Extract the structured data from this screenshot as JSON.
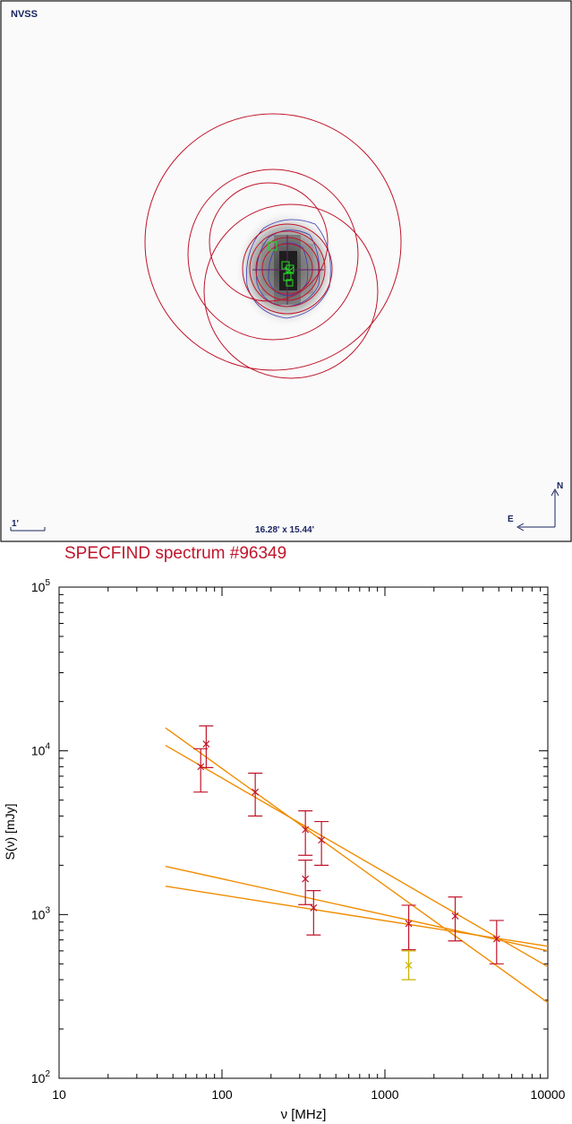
{
  "image_panel": {
    "survey_label": "NVSS",
    "scale_bar_label": "1'",
    "field_size_label": "16.28' x 15.44'",
    "north_label": "N",
    "east_label": "E"
  },
  "chart_data": {
    "type": "scatter",
    "title": "SPECFIND spectrum #96349",
    "xlabel": "ν [MHz]",
    "ylabel": "S(ν) [mJy]",
    "xscale": "log",
    "yscale": "log",
    "xlim": [
      10,
      10000
    ],
    "ylim": [
      100,
      100000
    ],
    "x_ticks": [
      {
        "value": 10,
        "label": "10"
      },
      {
        "value": 100,
        "label": "100"
      },
      {
        "value": 1000,
        "label": "1000"
      },
      {
        "value": 10000,
        "label": "10000"
      }
    ],
    "y_ticks": [
      {
        "value": 100,
        "base": "10",
        "exp": "2"
      },
      {
        "value": 1000,
        "base": "10",
        "exp": "3"
      },
      {
        "value": 10000,
        "base": "10",
        "exp": "4"
      },
      {
        "value": 100000,
        "base": "10",
        "exp": "5"
      }
    ],
    "points": [
      {
        "x": 74,
        "y": 8000,
        "yerr_lo": 5600,
        "yerr_hi": 10300,
        "color": "#c0142a"
      },
      {
        "x": 80,
        "y": 11000,
        "yerr_lo": 7900,
        "yerr_hi": 14200,
        "color": "#c0142a"
      },
      {
        "x": 160,
        "y": 5600,
        "yerr_lo": 4000,
        "yerr_hi": 7300,
        "color": "#c0142a"
      },
      {
        "x": 325,
        "y": 3300,
        "yerr_lo": 2300,
        "yerr_hi": 4300,
        "color": "#c0142a"
      },
      {
        "x": 325,
        "y": 1650,
        "yerr_lo": 1150,
        "yerr_hi": 2150,
        "color": "#c0142a"
      },
      {
        "x": 365,
        "y": 1100,
        "yerr_lo": 750,
        "yerr_hi": 1400,
        "color": "#c0142a"
      },
      {
        "x": 408,
        "y": 2850,
        "yerr_lo": 2000,
        "yerr_hi": 3700,
        "color": "#c0142a"
      },
      {
        "x": 1400,
        "y": 880,
        "yerr_lo": 610,
        "yerr_hi": 1140,
        "color": "#c0142a"
      },
      {
        "x": 1400,
        "y": 490,
        "yerr_lo": 400,
        "yerr_hi": 600,
        "color": "#c8b400"
      },
      {
        "x": 2700,
        "y": 980,
        "yerr_lo": 690,
        "yerr_hi": 1280,
        "color": "#c0142a"
      },
      {
        "x": 4850,
        "y": 710,
        "yerr_lo": 500,
        "yerr_hi": 920,
        "color": "#c0142a"
      }
    ],
    "fits": [
      {
        "x": [
          45,
          10000
        ],
        "y": [
          13800,
          290
        ],
        "color": "#f08c00"
      },
      {
        "x": [
          45,
          10000
        ],
        "y": [
          10800,
          480
        ],
        "color": "#f08c00"
      },
      {
        "x": [
          45,
          10000
        ],
        "y": [
          1970,
          600
        ],
        "color": "#f08c00"
      },
      {
        "x": [
          45,
          10000
        ],
        "y": [
          1490,
          640
        ],
        "color": "#f08c00"
      }
    ],
    "colors": {
      "title": "#c0142a",
      "points": "#c0142a",
      "fits": "#f08c00",
      "highlight_point": "#c8b400"
    }
  }
}
